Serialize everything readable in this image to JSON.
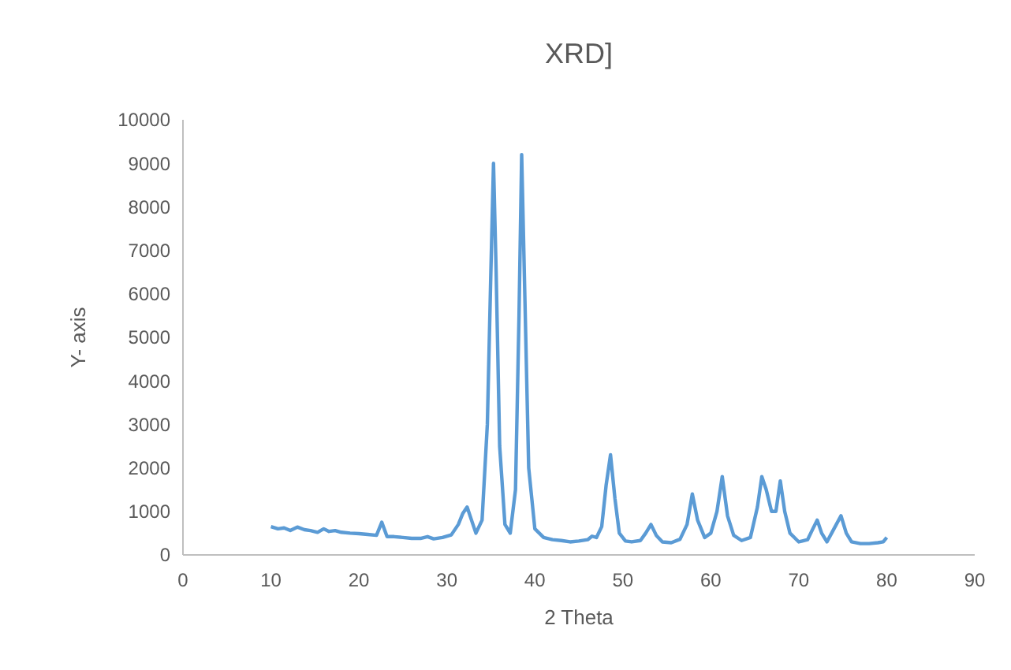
{
  "chart_data": {
    "type": "line",
    "title": "XRD]",
    "xlabel": "2 Theta",
    "ylabel": "Y- axis",
    "xlim": [
      0,
      90
    ],
    "xticks": [
      0,
      10,
      20,
      30,
      40,
      50,
      60,
      70,
      80,
      90
    ],
    "ylim": [
      0,
      10000
    ],
    "yticks": [
      0,
      1000,
      2000,
      3000,
      4000,
      5000,
      6000,
      7000,
      8000,
      9000,
      10000
    ],
    "marker": "none",
    "line_style": "solid",
    "series": [
      {
        "color": "#5b9bd5",
        "x": [
          10,
          10.8,
          11.5,
          12.2,
          13,
          13.8,
          14.5,
          15.3,
          16,
          16.6,
          17.3,
          18,
          19,
          20,
          21,
          22,
          22.6,
          23.2,
          24,
          25,
          26,
          27,
          27.8,
          28.5,
          29.5,
          30.5,
          31.3,
          31.8,
          32.3,
          32.8,
          33.3,
          34,
          34.6,
          35,
          35.3,
          35.6,
          36,
          36.6,
          37.2,
          37.8,
          38.2,
          38.5,
          38.8,
          39.3,
          40,
          41,
          42,
          43,
          44,
          45,
          46,
          46.5,
          47,
          47.6,
          48.1,
          48.6,
          49.1,
          49.6,
          50.3,
          51,
          52,
          52.6,
          53.2,
          53.8,
          54.5,
          55.5,
          56.5,
          57.3,
          57.9,
          58.5,
          59.3,
          60,
          60.7,
          61.3,
          61.9,
          62.6,
          63.5,
          64.5,
          65.3,
          65.8,
          66.3,
          66.9,
          67.4,
          67.9,
          68.4,
          69,
          70,
          71,
          71.6,
          72.1,
          72.6,
          73.2,
          74,
          74.8,
          75.4,
          76,
          77,
          78,
          79,
          79.6,
          80
        ],
        "values": [
          650,
          600,
          620,
          560,
          640,
          580,
          560,
          520,
          600,
          540,
          560,
          520,
          500,
          490,
          470,
          450,
          750,
          420,
          420,
          400,
          380,
          380,
          420,
          370,
          400,
          460,
          700,
          950,
          1100,
          800,
          500,
          800,
          3000,
          6500,
          9000,
          6500,
          2500,
          700,
          500,
          1500,
          5500,
          9200,
          6500,
          2000,
          600,
          400,
          350,
          330,
          300,
          320,
          350,
          430,
          400,
          650,
          1600,
          2300,
          1300,
          500,
          320,
          300,
          330,
          500,
          700,
          450,
          300,
          280,
          360,
          700,
          1400,
          800,
          400,
          500,
          1000,
          1800,
          900,
          450,
          330,
          400,
          1100,
          1800,
          1500,
          1000,
          1000,
          1700,
          1000,
          500,
          300,
          350,
          600,
          800,
          500,
          300,
          600,
          900,
          500,
          300,
          260,
          260,
          280,
          300,
          400
        ]
      }
    ]
  }
}
